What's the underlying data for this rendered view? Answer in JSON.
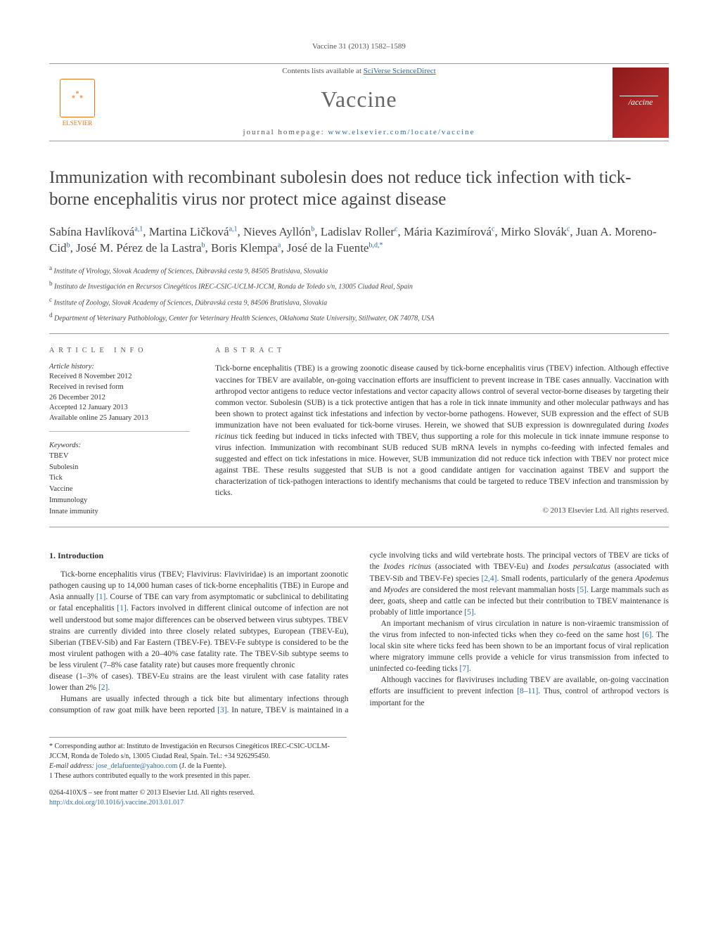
{
  "journal_ref": "Vaccine 31 (2013) 1582–1589",
  "masthead": {
    "contents_line_prefix": "Contents lists available at ",
    "contents_link": "SciVerse ScienceDirect",
    "journal_name": "Vaccine",
    "homepage_prefix": "journal homepage: ",
    "homepage_url": "www.elsevier.com/locate/vaccine",
    "publisher_mark": "ELSEVIER",
    "cover_label": "/accine"
  },
  "title": "Immunization with recombinant subolesin does not reduce tick infection with tick-borne encephalitis virus nor protect mice against disease",
  "authors_html": "Sabína Havlíková<sup>a,1</sup>, Martina Ličková<sup>a,1</sup>, Nieves Ayllón<sup>b</sup>, Ladislav Roller<sup>c</sup>, Mária Kazimírová<sup>c</sup>, Mirko Slovák<sup>c</sup>, Juan A. Moreno-Cid<sup>b</sup>, José M. Pérez de la Lastra<sup>b</sup>, Boris Klempa<sup>a</sup>, José de la Fuente<sup>b,d,*</sup>",
  "affiliations": [
    {
      "sup": "a",
      "text": "Institute of Virology, Slovak Academy of Sciences, Dúbravská cesta 9, 84505 Bratislava, Slovakia"
    },
    {
      "sup": "b",
      "text": "Instituto de Investigación en Recursos Cinegéticos IREC-CSIC-UCLM-JCCM, Ronda de Toledo s/n, 13005 Ciudad Real, Spain"
    },
    {
      "sup": "c",
      "text": "Institute of Zoology, Slovak Academy of Sciences, Dúbravská cesta 9, 84506 Bratislava, Slovakia"
    },
    {
      "sup": "d",
      "text": "Department of Veterinary Pathobiology, Center for Veterinary Health Sciences, Oklahoma State University, Stillwater, OK 74078, USA"
    }
  ],
  "info_label": "ARTICLE INFO",
  "abstract_label": "ABSTRACT",
  "history": {
    "label": "Article history:",
    "received": "Received 8 November 2012",
    "revised_l1": "Received in revised form",
    "revised_l2": "26 December 2012",
    "accepted": "Accepted 12 January 2013",
    "online": "Available online 25 January 2013"
  },
  "keywords": {
    "label": "Keywords:",
    "items": [
      "TBEV",
      "Subolesin",
      "Tick",
      "Vaccine",
      "Immunology",
      "Innate immunity"
    ]
  },
  "abstract_html": "Tick-borne encephalitis (TBE) is a growing zoonotic disease caused by tick-borne encephalitis virus (TBEV) infection. Although effective vaccines for TBEV are available, on-going vaccination efforts are insufficient to prevent increase in TBE cases annually. Vaccination with arthropod vector antigens to reduce vector infestations and vector capacity allows control of several vector-borne diseases by targeting their common vector. Subolesin (SUB) is a tick protective antigen that has a role in tick innate immunity and other molecular pathways and has been shown to protect against tick infestations and infection by vector-borne pathogens. However, SUB expression and the effect of SUB immunization have not been evaluated for tick-borne viruses. Herein, we showed that SUB expression is downregulated during <em>Ixodes ricinus</em> tick feeding but induced in ticks infected with TBEV, thus supporting a role for this molecule in tick innate immune response to virus infection. Immunization with recombinant SUB reduced SUB mRNA levels in nymphs co-feeding with infected females and suggested and effect on tick infestations in mice. However, SUB immunization did not reduce tick infection with TBEV nor protect mice against TBE. These results suggested that SUB is not a good candidate antigen for vaccination against TBEV and support the characterization of tick-pathogen interactions to identify mechanisms that could be targeted to reduce TBEV infection and transmission by ticks.",
  "copyright": "© 2013 Elsevier Ltd. All rights reserved.",
  "section1_heading": "1. Introduction",
  "paragraphs": [
    "Tick-borne encephalitis virus (TBEV; Flavivirus: Flaviviridae) is an important zoonotic pathogen causing up to 14,000 human cases of tick-borne encephalitis (TBE) in Europe and Asia annually <span class=\"cite\">[1]</span>. Course of TBE can vary from asymptomatic or subclinical to debilitating or fatal encephalitis <span class=\"cite\">[1]</span>. Factors involved in different clinical outcome of infection are not well understood but some major differences can be observed between virus subtypes. TBEV strains are currently divided into three closely related subtypes, European (TBEV-Eu), Siberian (TBEV-Sib) and Far Eastern (TBEV-Fe). TBEV-Fe subtype is considered to be the most virulent pathogen with a 20–40% case fatality rate. The TBEV-Sib subtype seems to be less virulent (7–8% case fatality rate) but causes more frequently chronic",
    "disease (1–3% of cases). TBEV-Eu strains are the least virulent with case fatality rates lower than 2% <span class=\"cite\">[2]</span>.",
    "Humans are usually infected through a tick bite but alimentary infections through consumption of raw goat milk have been reported <span class=\"cite\">[3]</span>. In nature, TBEV is maintained in a cycle involving ticks and wild vertebrate hosts. The principal vectors of TBEV are ticks of the <em>Ixodes ricinus</em> (associated with TBEV-Eu) and <em>Ixodes persulcatus</em> (associated with TBEV-Sib and TBEV-Fe) species <span class=\"cite\">[2,4]</span>. Small rodents, particularly of the genera <em>Apodemus</em> and <em>Myodes</em> are considered the most relevant mammalian hosts <span class=\"cite\">[5]</span>. Large mammals such as deer, goats, sheep and cattle can be infected but their contribution to TBEV maintenance is probably of little importance <span class=\"cite\">[5]</span>.",
    "An important mechanism of virus circulation in nature is non-viraemic transmission of the virus from infected to non-infected ticks when they co-feed on the same host <span class=\"cite\">[6]</span>. The local skin site where ticks feed has been shown to be an important focus of viral replication where migratory immune cells provide a vehicle for virus transmission from infected to uninfected co-feeding ticks <span class=\"cite\">[7]</span>.",
    "Although vaccines for flaviviruses including TBEV are available, on-going vaccination efforts are insufficient to prevent infection <span class=\"cite\">[8–11]</span>. Thus, control of arthropod vectors is important for the"
  ],
  "footnotes": {
    "corresponding": "* Corresponding author at: Instituto de Investigación en Recursos Cinegéticos IREC-CSIC-UCLM-JCCM, Ronda de Toledo s/n, 13005 Ciudad Real, Spain. Tel.: +34 926295450.",
    "email_label": "E-mail address: ",
    "email": "jose_delafuente@yahoo.com",
    "email_suffix": " (J. de la Fuente).",
    "equal": "1 These authors contributed equally to the work presented in this paper."
  },
  "doi": {
    "line1": "0264-410X/$ – see front matter © 2013 Elsevier Ltd. All rights reserved.",
    "url": "http://dx.doi.org/10.1016/j.vaccine.2013.01.017"
  },
  "colors": {
    "link": "#2b6aa8",
    "accent": "#e67817",
    "cover": "#8b1a1a",
    "text": "#333",
    "rule": "#999"
  },
  "typography": {
    "body_pt": 11.5,
    "title_pt": 25,
    "journal_name_pt": 32,
    "small_pt": 10
  }
}
